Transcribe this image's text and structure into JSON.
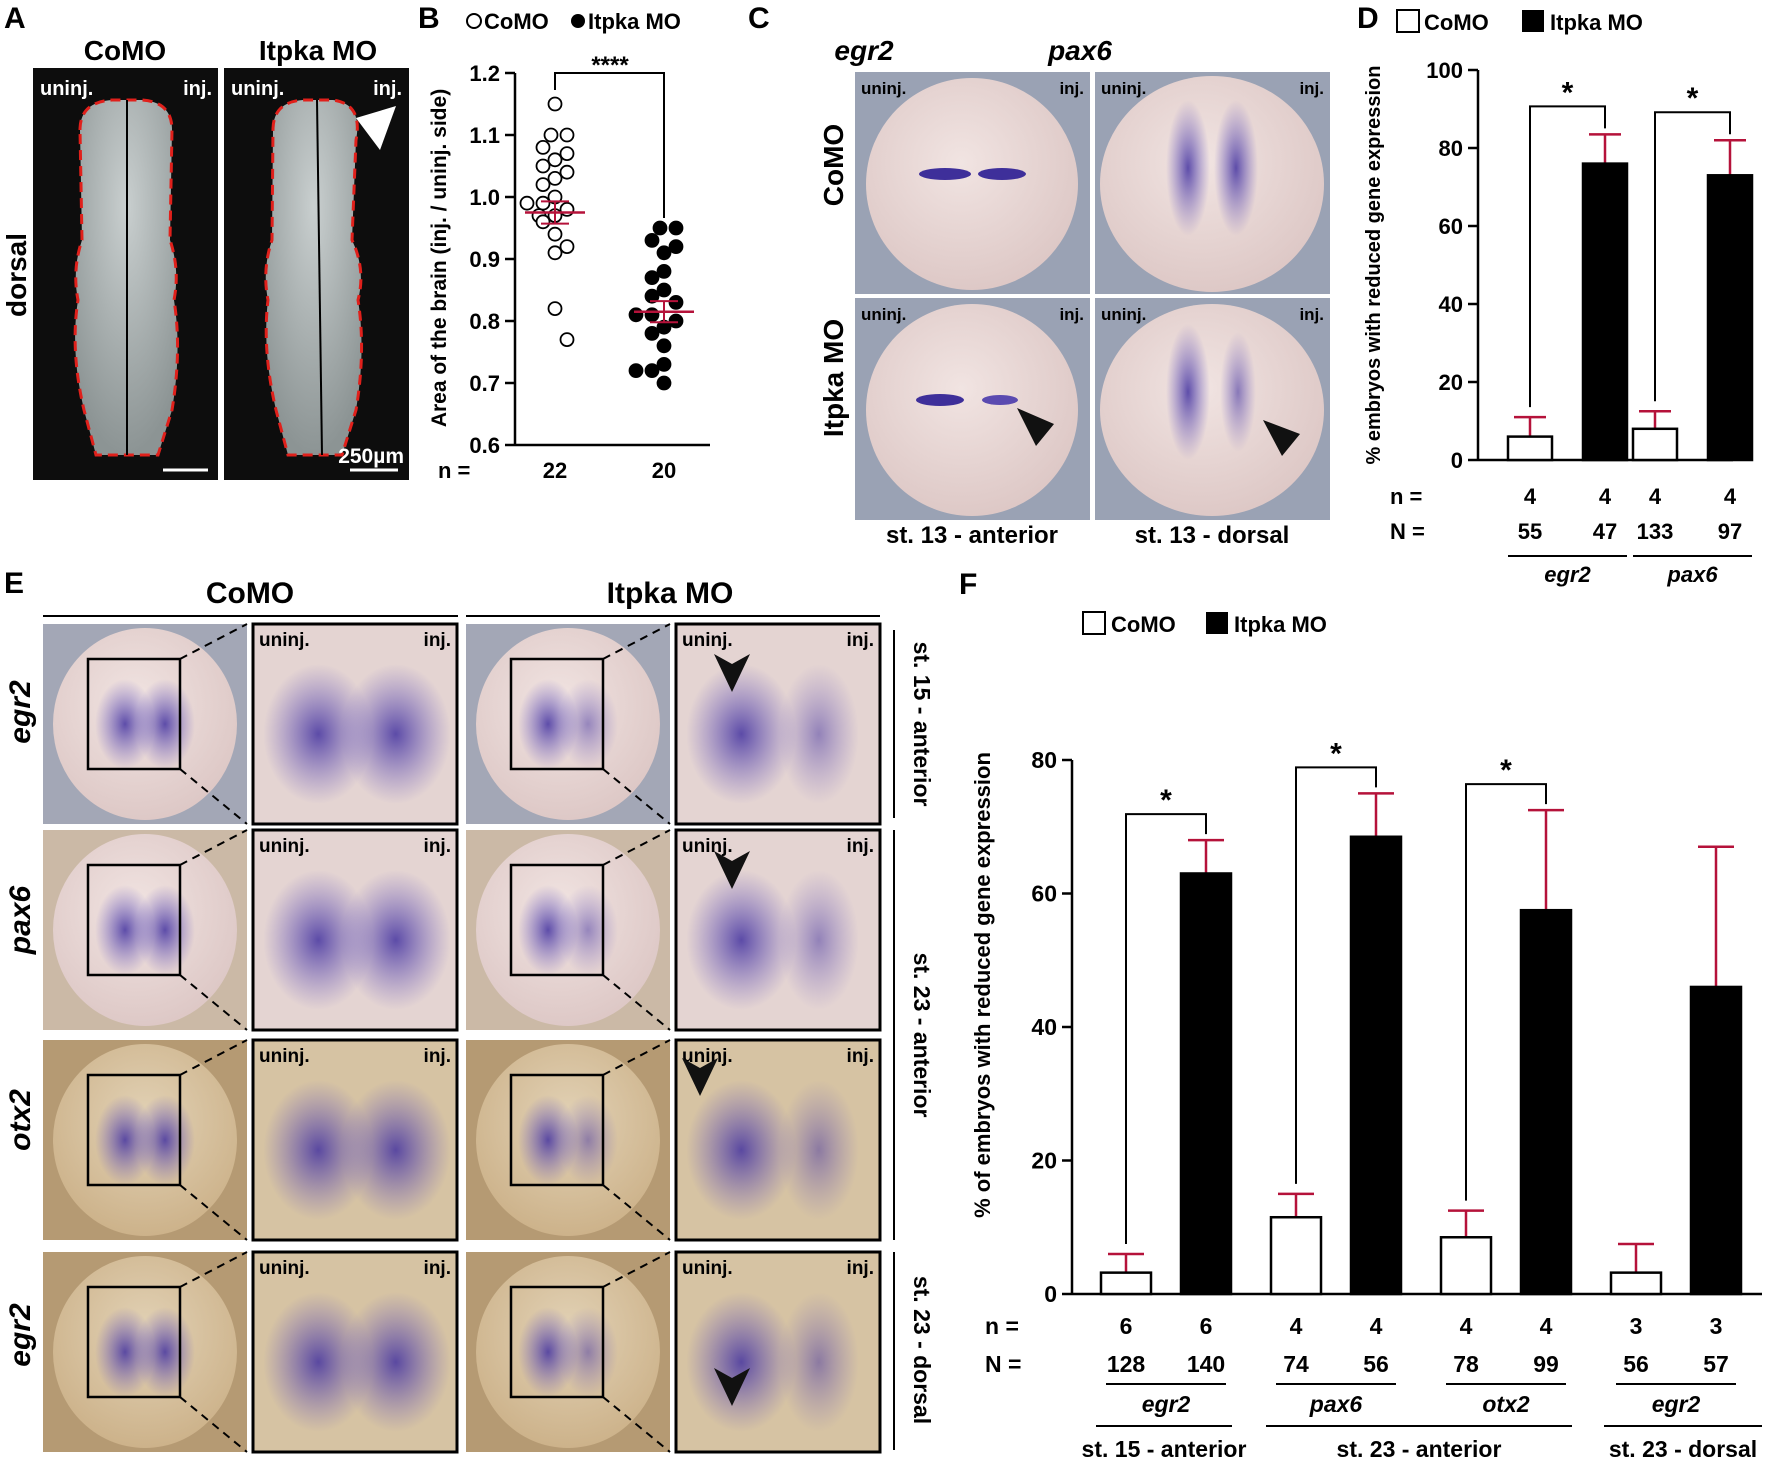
{
  "panel_letters": [
    "A",
    "B",
    "C",
    "D",
    "E",
    "F"
  ],
  "colors": {
    "como": "#ffffff",
    "itpka": "#000000",
    "error_bars": "#b5123a",
    "outline_dash": "#e0201b",
    "stain": "#4a3aa8",
    "dark_bg": "#0d0d0d",
    "embryo_pink": "#e8d6d6",
    "embryo_tan": "#d9c29a"
  },
  "panel_a": {
    "headers": [
      "CoMO",
      "Itpka MO"
    ],
    "corner_left": "uninj.",
    "corner_right": "inj.",
    "side_label": "dorsal",
    "scale_bar": "250µm"
  },
  "panel_c": {
    "col_headers": [
      "egr2",
      "pax6"
    ],
    "row_headers": [
      "CoMO",
      "Itpka MO"
    ],
    "corner_left": "uninj.",
    "corner_right": "inj.",
    "captions": [
      "st. 13 - anterior",
      "st. 13 - dorsal"
    ]
  },
  "panel_e": {
    "col_headers": [
      "CoMO",
      "Itpka MO"
    ],
    "row_labels": [
      "egr2",
      "pax6",
      "otx2",
      "egr2"
    ],
    "corner_left": "uninj.",
    "corner_right": "inj.",
    "stage_labels": [
      "st. 15 - anterior",
      "st. 23 - anterior",
      "st. 23 - dorsal"
    ]
  },
  "chart_data": [
    {
      "panel": "B",
      "type": "scatter",
      "ylabel": "Area of the brain  (inj. / uninj. side)",
      "ylim": [
        0.6,
        1.2
      ],
      "yticks": [
        "0.6",
        "0.7",
        "0.8",
        "0.9",
        "1.0",
        "1.1",
        "1.2"
      ],
      "legend": [
        "CoMO",
        "Itpka MO"
      ],
      "legend_position": "top",
      "n_label": "n =",
      "n_values": [
        "22",
        "20"
      ],
      "significance": "****",
      "series": [
        {
          "name": "CoMO",
          "marker": "open-circle",
          "mean": 0.975,
          "sem": 0.018,
          "values": [
            1.15,
            1.1,
            1.08,
            1.1,
            1.07,
            1.06,
            1.04,
            1.05,
            1.03,
            1.02,
            1.0,
            0.99,
            0.99,
            0.98,
            0.97,
            0.97,
            0.96,
            0.94,
            0.92,
            0.91,
            0.82,
            0.77
          ]
        },
        {
          "name": "Itpka MO",
          "marker": "filled-circle",
          "mean": 0.815,
          "sem": 0.017,
          "values": [
            0.95,
            0.95,
            0.93,
            0.92,
            0.91,
            0.88,
            0.87,
            0.85,
            0.84,
            0.83,
            0.81,
            0.81,
            0.8,
            0.79,
            0.78,
            0.76,
            0.73,
            0.72,
            0.72,
            0.7
          ]
        }
      ]
    },
    {
      "panel": "D",
      "type": "bar",
      "ylabel": "% embryos with reduced gene expression",
      "ylim": [
        0,
        100
      ],
      "yticks": [
        "0",
        "20",
        "40",
        "60",
        "80",
        "100"
      ],
      "legend": [
        "CoMO",
        "Itpka MO"
      ],
      "legend_position": "top",
      "groups": [
        {
          "gene": "egr2",
          "n": [
            "4",
            "4"
          ],
          "N": [
            "55",
            "47"
          ],
          "como": [
            6,
            5
          ],
          "itpka": [
            76,
            7.5
          ],
          "sig": "*"
        },
        {
          "gene": "pax6",
          "n": [
            "4",
            "4"
          ],
          "N": [
            "133",
            "97"
          ],
          "como": [
            8,
            4.5
          ],
          "itpka": [
            73,
            9
          ],
          "sig": "*"
        }
      ]
    },
    {
      "panel": "F",
      "type": "bar",
      "ylabel": "% of embryos with reduced gene expression",
      "ylim": [
        0,
        80
      ],
      "yticks": [
        "0",
        "20",
        "40",
        "60",
        "80"
      ],
      "legend": [
        "CoMO",
        "Itpka MO"
      ],
      "legend_position": "top-left",
      "groups": [
        {
          "gene": "egr2",
          "stage": "st. 15 - anterior",
          "n": [
            "6",
            "6"
          ],
          "N": [
            "128",
            "140"
          ],
          "como": [
            3.2,
            2.8
          ],
          "itpka": [
            63,
            5
          ],
          "sig": "*"
        },
        {
          "gene": "pax6",
          "stage": "st. 23 - anterior",
          "n": [
            "4",
            "4"
          ],
          "N": [
            "74",
            "56"
          ],
          "como": [
            11.5,
            3.5
          ],
          "itpka": [
            68.5,
            6.5
          ],
          "sig": "*"
        },
        {
          "gene": "otx2",
          "stage": "st. 23 - anterior",
          "n": [
            "4",
            "4"
          ],
          "N": [
            "78",
            "99"
          ],
          "como": [
            8.5,
            4
          ],
          "itpka": [
            57.5,
            15
          ],
          "sig": "*"
        },
        {
          "gene": "egr2",
          "stage": "st. 23 - dorsal",
          "n": [
            "3",
            "3"
          ],
          "N": [
            "56",
            "57"
          ],
          "como": [
            3.2,
            4.3
          ],
          "itpka": [
            46,
            21
          ],
          "sig": ""
        }
      ]
    }
  ]
}
